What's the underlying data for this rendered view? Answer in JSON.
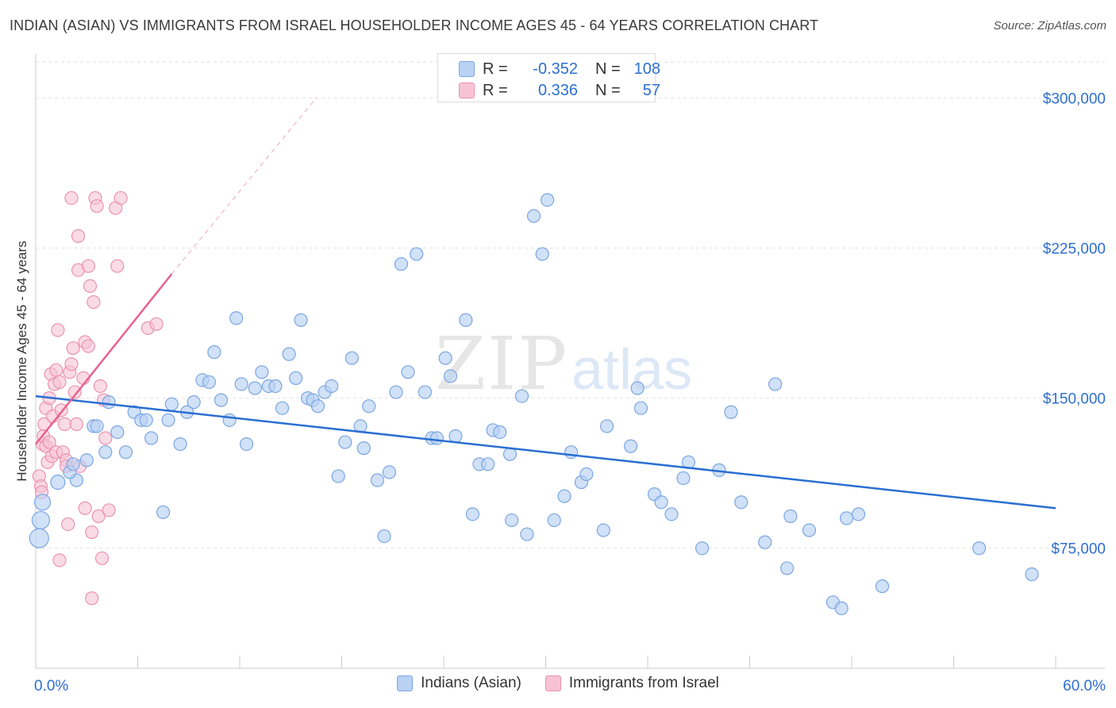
{
  "title": "INDIAN (ASIAN) VS IMMIGRANTS FROM ISRAEL HOUSEHOLDER INCOME AGES 45 - 64 YEARS CORRELATION CHART",
  "source": "Source: ZipAtlas.com",
  "watermark": {
    "zip": "ZIP",
    "atlas": "atlas"
  },
  "colors": {
    "blue_fill": "#b9d1f3",
    "blue_stroke": "#7aa6e3",
    "blue_line": "#2a6fd1",
    "pink_fill": "#f7c3d4",
    "pink_stroke": "#ec91b1",
    "pink_line": "#e8628f",
    "value_text": "#2e6fd0"
  },
  "legend_top": {
    "rows": [
      {
        "r_label": "R =",
        "r_value": "-0.352",
        "n_label": "N =",
        "n_value": "108"
      },
      {
        "r_label": "R =",
        "r_value": "0.336",
        "n_label": "N =",
        "n_value": "57"
      }
    ]
  },
  "chart_data": {
    "type": "scatter",
    "title": "INDIAN (ASIAN) VS IMMIGRANTS FROM ISRAEL HOUSEHOLDER INCOME AGES 45 - 64 YEARS CORRELATION CHART",
    "xlabel": "",
    "ylabel": "Householder Income Ages 45 - 64 years",
    "xlim": [
      0,
      60
    ],
    "ylim": [
      15000,
      318000
    ],
    "x_tick_labels": [
      "0.0%",
      "60.0%"
    ],
    "y_ticks": [
      75000,
      150000,
      225000,
      300000
    ],
    "y_tick_labels": [
      "$75,000",
      "$150,000",
      "$225,000",
      "$300,000"
    ],
    "grid": "horizontal dashed",
    "legend": [
      "Indians (Asian)",
      "Immigrants from Israel"
    ],
    "series": [
      {
        "name": "Indians (Asian)",
        "trend": {
          "x": [
            0,
            60
          ],
          "y": [
            151000,
            95000
          ]
        },
        "points": [
          [
            0.2,
            80000,
            12
          ],
          [
            0.3,
            89000,
            11
          ],
          [
            0.4,
            98000,
            10
          ],
          [
            1.3,
            108000,
            9
          ],
          [
            2.4,
            109000,
            8
          ],
          [
            2.0,
            113000,
            8
          ],
          [
            2.2,
            117000,
            8
          ],
          [
            3.0,
            119000,
            8
          ],
          [
            3.4,
            136000,
            8
          ],
          [
            3.6,
            136000,
            8
          ],
          [
            4.3,
            148000,
            8
          ],
          [
            4.1,
            123000,
            8
          ],
          [
            4.8,
            133000,
            8
          ],
          [
            5.3,
            123000,
            8
          ],
          [
            5.8,
            143000,
            8
          ],
          [
            6.2,
            139000,
            8
          ],
          [
            6.5,
            139000,
            8
          ],
          [
            6.8,
            130000,
            8
          ],
          [
            7.5,
            93000,
            8
          ],
          [
            7.8,
            139000,
            8
          ],
          [
            8.0,
            147000,
            8
          ],
          [
            8.5,
            127000,
            8
          ],
          [
            8.9,
            143000,
            8
          ],
          [
            9.3,
            148000,
            8
          ],
          [
            9.8,
            159000,
            8
          ],
          [
            10.2,
            158000,
            8
          ],
          [
            10.5,
            173000,
            8
          ],
          [
            10.9,
            149000,
            8
          ],
          [
            11.4,
            139000,
            8
          ],
          [
            11.8,
            190000,
            8
          ],
          [
            12.1,
            157000,
            8
          ],
          [
            12.4,
            127000,
            8
          ],
          [
            12.9,
            155000,
            8
          ],
          [
            13.3,
            163000,
            8
          ],
          [
            13.7,
            156000,
            8
          ],
          [
            14.1,
            156000,
            8
          ],
          [
            14.5,
            145000,
            8
          ],
          [
            14.9,
            172000,
            8
          ],
          [
            15.3,
            160000,
            8
          ],
          [
            15.6,
            189000,
            8
          ],
          [
            16.0,
            150000,
            8
          ],
          [
            16.3,
            149000,
            8
          ],
          [
            16.6,
            146000,
            8
          ],
          [
            17.0,
            153000,
            8
          ],
          [
            17.4,
            156000,
            8
          ],
          [
            17.8,
            111000,
            8
          ],
          [
            18.2,
            128000,
            8
          ],
          [
            18.6,
            170000,
            8
          ],
          [
            19.1,
            136000,
            8
          ],
          [
            19.3,
            125000,
            8
          ],
          [
            19.6,
            146000,
            8
          ],
          [
            20.1,
            109000,
            8
          ],
          [
            20.5,
            81000,
            8
          ],
          [
            20.8,
            113000,
            8
          ],
          [
            21.2,
            153000,
            8
          ],
          [
            21.5,
            217000,
            8
          ],
          [
            21.9,
            163000,
            8
          ],
          [
            22.4,
            222000,
            8
          ],
          [
            22.9,
            153000,
            8
          ],
          [
            23.3,
            130000,
            8
          ],
          [
            23.6,
            130000,
            8
          ],
          [
            24.1,
            170000,
            8
          ],
          [
            24.4,
            161000,
            8
          ],
          [
            24.7,
            131000,
            8
          ],
          [
            25.3,
            189000,
            8
          ],
          [
            25.7,
            92000,
            8
          ],
          [
            26.1,
            117000,
            8
          ],
          [
            26.6,
            117000,
            8
          ],
          [
            26.9,
            134000,
            8
          ],
          [
            27.3,
            133000,
            8
          ],
          [
            27.9,
            122000,
            8
          ],
          [
            28.0,
            89000,
            8
          ],
          [
            28.6,
            151000,
            8
          ],
          [
            28.9,
            82000,
            8
          ],
          [
            29.3,
            241000,
            8
          ],
          [
            29.8,
            222000,
            8
          ],
          [
            30.1,
            249000,
            8
          ],
          [
            30.5,
            89000,
            8
          ],
          [
            31.1,
            101000,
            8
          ],
          [
            31.5,
            123000,
            8
          ],
          [
            32.1,
            108000,
            8
          ],
          [
            32.4,
            112000,
            8
          ],
          [
            33.4,
            84000,
            8
          ],
          [
            33.6,
            136000,
            8
          ],
          [
            35.0,
            126000,
            8
          ],
          [
            35.4,
            155000,
            8
          ],
          [
            35.6,
            145000,
            8
          ],
          [
            36.4,
            102000,
            8
          ],
          [
            36.8,
            98000,
            8
          ],
          [
            37.4,
            92000,
            8
          ],
          [
            38.1,
            110000,
            8
          ],
          [
            38.4,
            118000,
            8
          ],
          [
            39.2,
            75000,
            8
          ],
          [
            40.2,
            114000,
            8
          ],
          [
            40.9,
            143000,
            8
          ],
          [
            41.5,
            98000,
            8
          ],
          [
            42.9,
            78000,
            8
          ],
          [
            43.5,
            157000,
            8
          ],
          [
            44.2,
            65000,
            8
          ],
          [
            44.4,
            91000,
            8
          ],
          [
            45.5,
            84000,
            8
          ],
          [
            46.9,
            48000,
            8
          ],
          [
            47.4,
            45000,
            8
          ],
          [
            47.7,
            90000,
            8
          ],
          [
            48.4,
            92000,
            8
          ],
          [
            49.8,
            56000,
            8
          ],
          [
            55.5,
            75000,
            8
          ],
          [
            58.6,
            62000,
            8
          ]
        ]
      },
      {
        "name": "Immigrants from Israel",
        "trend": {
          "x": [
            0,
            8
          ],
          "y": [
            127000,
            212000
          ]
        },
        "trend_dashed": {
          "x": [
            8,
            16.5
          ],
          "y": [
            212000,
            300000
          ]
        },
        "points": [
          [
            0.2,
            111000
          ],
          [
            0.3,
            106000
          ],
          [
            0.35,
            103000
          ],
          [
            0.4,
            127000
          ],
          [
            0.45,
            131000
          ],
          [
            0.5,
            137000
          ],
          [
            0.6,
            145000
          ],
          [
            0.6,
            126000
          ],
          [
            0.7,
            118000
          ],
          [
            0.8,
            150000
          ],
          [
            0.8,
            128000
          ],
          [
            0.9,
            162000
          ],
          [
            0.95,
            121000
          ],
          [
            1.0,
            141000
          ],
          [
            1.1,
            157000
          ],
          [
            1.2,
            164000
          ],
          [
            1.2,
            123000
          ],
          [
            1.3,
            184000
          ],
          [
            1.4,
            158000
          ],
          [
            1.4,
            69000
          ],
          [
            1.5,
            144000
          ],
          [
            1.6,
            123000
          ],
          [
            1.7,
            137000
          ],
          [
            1.8,
            119000
          ],
          [
            1.8,
            116000
          ],
          [
            1.9,
            87000
          ],
          [
            2.0,
            163000
          ],
          [
            2.1,
            167000
          ],
          [
            2.1,
            250000
          ],
          [
            2.2,
            175000
          ],
          [
            2.3,
            153000
          ],
          [
            2.4,
            137000
          ],
          [
            2.5,
            231000
          ],
          [
            2.5,
            214000
          ],
          [
            2.6,
            116000
          ],
          [
            2.8,
            160000
          ],
          [
            2.9,
            178000
          ],
          [
            2.9,
            95000
          ],
          [
            3.1,
            216000
          ],
          [
            3.1,
            176000
          ],
          [
            3.2,
            206000
          ],
          [
            3.3,
            83000
          ],
          [
            3.4,
            198000
          ],
          [
            3.5,
            250000
          ],
          [
            3.3,
            50000
          ],
          [
            3.6,
            246000
          ],
          [
            3.7,
            91000
          ],
          [
            3.8,
            156000
          ],
          [
            3.9,
            70000
          ],
          [
            4.0,
            149000
          ],
          [
            4.1,
            130000
          ],
          [
            4.3,
            94000
          ],
          [
            4.7,
            245000
          ],
          [
            4.8,
            216000
          ],
          [
            5.0,
            250000
          ],
          [
            6.6,
            185000
          ],
          [
            7.1,
            187000
          ]
        ]
      }
    ]
  }
}
